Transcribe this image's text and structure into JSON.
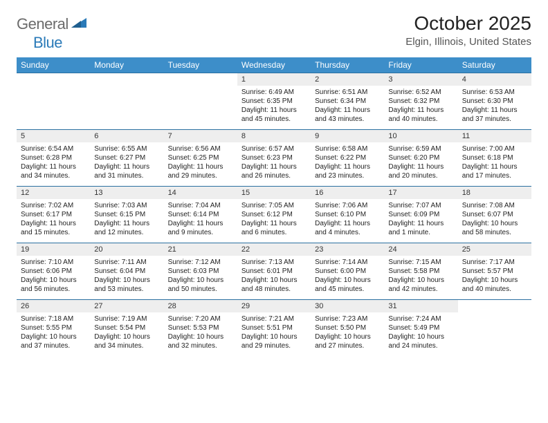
{
  "logo": {
    "text1": "General",
    "text2": "Blue"
  },
  "title": "October 2025",
  "location": "Elgin, Illinois, United States",
  "colors": {
    "header_bg": "#3d8ec9",
    "header_text": "#ffffff",
    "daynum_bg": "#eeeeee",
    "row_border": "#2a6fa0",
    "logo_gray": "#6b6b6b",
    "logo_blue": "#2a7ab8"
  },
  "weekdays": [
    "Sunday",
    "Monday",
    "Tuesday",
    "Wednesday",
    "Thursday",
    "Friday",
    "Saturday"
  ],
  "weeks": [
    [
      null,
      null,
      null,
      {
        "n": "1",
        "sunrise": "6:49 AM",
        "sunset": "6:35 PM",
        "dayh": "11",
        "daym": "45"
      },
      {
        "n": "2",
        "sunrise": "6:51 AM",
        "sunset": "6:34 PM",
        "dayh": "11",
        "daym": "43"
      },
      {
        "n": "3",
        "sunrise": "6:52 AM",
        "sunset": "6:32 PM",
        "dayh": "11",
        "daym": "40"
      },
      {
        "n": "4",
        "sunrise": "6:53 AM",
        "sunset": "6:30 PM",
        "dayh": "11",
        "daym": "37"
      }
    ],
    [
      {
        "n": "5",
        "sunrise": "6:54 AM",
        "sunset": "6:28 PM",
        "dayh": "11",
        "daym": "34"
      },
      {
        "n": "6",
        "sunrise": "6:55 AM",
        "sunset": "6:27 PM",
        "dayh": "11",
        "daym": "31"
      },
      {
        "n": "7",
        "sunrise": "6:56 AM",
        "sunset": "6:25 PM",
        "dayh": "11",
        "daym": "29"
      },
      {
        "n": "8",
        "sunrise": "6:57 AM",
        "sunset": "6:23 PM",
        "dayh": "11",
        "daym": "26"
      },
      {
        "n": "9",
        "sunrise": "6:58 AM",
        "sunset": "6:22 PM",
        "dayh": "11",
        "daym": "23"
      },
      {
        "n": "10",
        "sunrise": "6:59 AM",
        "sunset": "6:20 PM",
        "dayh": "11",
        "daym": "20"
      },
      {
        "n": "11",
        "sunrise": "7:00 AM",
        "sunset": "6:18 PM",
        "dayh": "11",
        "daym": "17"
      }
    ],
    [
      {
        "n": "12",
        "sunrise": "7:02 AM",
        "sunset": "6:17 PM",
        "dayh": "11",
        "daym": "15"
      },
      {
        "n": "13",
        "sunrise": "7:03 AM",
        "sunset": "6:15 PM",
        "dayh": "11",
        "daym": "12"
      },
      {
        "n": "14",
        "sunrise": "7:04 AM",
        "sunset": "6:14 PM",
        "dayh": "11",
        "daym": "9"
      },
      {
        "n": "15",
        "sunrise": "7:05 AM",
        "sunset": "6:12 PM",
        "dayh": "11",
        "daym": "6"
      },
      {
        "n": "16",
        "sunrise": "7:06 AM",
        "sunset": "6:10 PM",
        "dayh": "11",
        "daym": "4"
      },
      {
        "n": "17",
        "sunrise": "7:07 AM",
        "sunset": "6:09 PM",
        "dayh": "11",
        "daym": "1"
      },
      {
        "n": "18",
        "sunrise": "7:08 AM",
        "sunset": "6:07 PM",
        "dayh": "10",
        "daym": "58"
      }
    ],
    [
      {
        "n": "19",
        "sunrise": "7:10 AM",
        "sunset": "6:06 PM",
        "dayh": "10",
        "daym": "56"
      },
      {
        "n": "20",
        "sunrise": "7:11 AM",
        "sunset": "6:04 PM",
        "dayh": "10",
        "daym": "53"
      },
      {
        "n": "21",
        "sunrise": "7:12 AM",
        "sunset": "6:03 PM",
        "dayh": "10",
        "daym": "50"
      },
      {
        "n": "22",
        "sunrise": "7:13 AM",
        "sunset": "6:01 PM",
        "dayh": "10",
        "daym": "48"
      },
      {
        "n": "23",
        "sunrise": "7:14 AM",
        "sunset": "6:00 PM",
        "dayh": "10",
        "daym": "45"
      },
      {
        "n": "24",
        "sunrise": "7:15 AM",
        "sunset": "5:58 PM",
        "dayh": "10",
        "daym": "42"
      },
      {
        "n": "25",
        "sunrise": "7:17 AM",
        "sunset": "5:57 PM",
        "dayh": "10",
        "daym": "40"
      }
    ],
    [
      {
        "n": "26",
        "sunrise": "7:18 AM",
        "sunset": "5:55 PM",
        "dayh": "10",
        "daym": "37"
      },
      {
        "n": "27",
        "sunrise": "7:19 AM",
        "sunset": "5:54 PM",
        "dayh": "10",
        "daym": "34"
      },
      {
        "n": "28",
        "sunrise": "7:20 AM",
        "sunset": "5:53 PM",
        "dayh": "10",
        "daym": "32"
      },
      {
        "n": "29",
        "sunrise": "7:21 AM",
        "sunset": "5:51 PM",
        "dayh": "10",
        "daym": "29"
      },
      {
        "n": "30",
        "sunrise": "7:23 AM",
        "sunset": "5:50 PM",
        "dayh": "10",
        "daym": "27"
      },
      {
        "n": "31",
        "sunrise": "7:24 AM",
        "sunset": "5:49 PM",
        "dayh": "10",
        "daym": "24"
      },
      null
    ]
  ]
}
